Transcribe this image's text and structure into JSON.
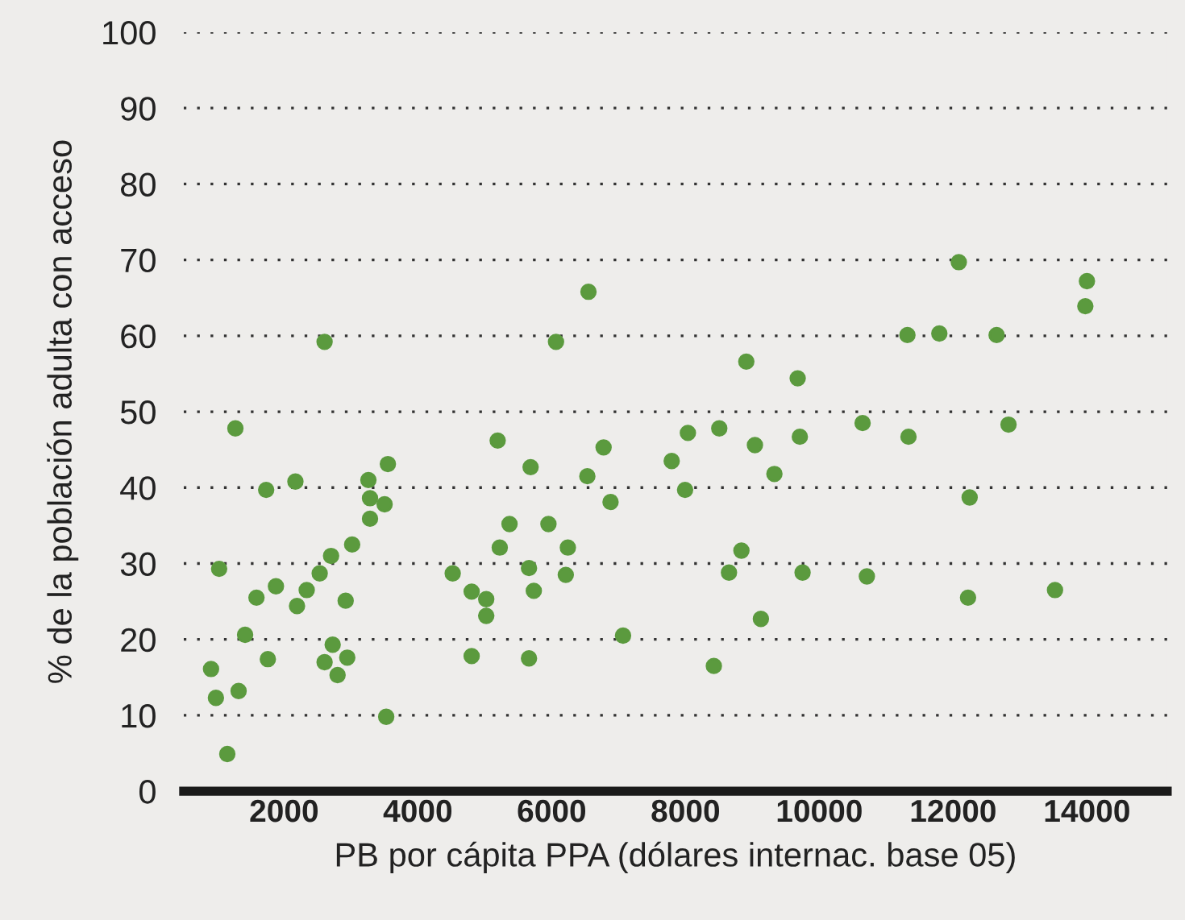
{
  "chart_data": {
    "type": "scatter",
    "xlabel": "PB por cápita PPA (dólares internac. base 05)",
    "ylabel": "% de la población adulta con acceso",
    "x": [
      909,
      982,
      1030,
      1152,
      1273,
      1321,
      1418,
      1588,
      1733,
      1758,
      1879,
      2170,
      2194,
      2339,
      2533,
      2606,
      2606,
      2703,
      2727,
      2800,
      2921,
      2945,
      3018,
      3261,
      3285,
      3285,
      3503,
      3552,
      3527,
      4521,
      4804,
      4804,
      5022,
      5022,
      5224,
      5370,
      5193,
      5661,
      5733,
      5661,
      5685,
      6065,
      5952,
      6242,
      6211,
      6550,
      6533,
      6776,
      6880,
      7067,
      7794,
      8036,
      7994,
      8424,
      8505,
      8836,
      8650,
      8909,
      9038,
      9127,
      9329,
      9677,
      9709,
      9750,
      10647,
      10711,
      11317,
      11333,
      11794,
      12085,
      12247,
      12223,
      14000,
      13976,
      12650,
      12828,
      13523
    ],
    "values": [
      16.1,
      12.3,
      29.3,
      4.9,
      47.8,
      13.2,
      20.6,
      25.5,
      39.7,
      17.4,
      27.0,
      40.8,
      24.4,
      26.5,
      28.7,
      17.0,
      59.2,
      31.0,
      19.3,
      15.3,
      25.1,
      17.6,
      32.5,
      41.0,
      38.6,
      35.9,
      37.8,
      43.1,
      9.8,
      28.7,
      26.3,
      17.8,
      25.3,
      23.1,
      32.1,
      35.2,
      46.2,
      29.4,
      26.4,
      17.5,
      42.7,
      59.2,
      35.2,
      32.1,
      28.5,
      65.8,
      41.5,
      45.3,
      38.1,
      20.5,
      43.5,
      47.2,
      39.7,
      16.5,
      47.8,
      31.7,
      28.8,
      56.6,
      45.6,
      22.7,
      41.8,
      54.4,
      46.7,
      28.8,
      48.5,
      28.3,
      60.1,
      46.7,
      60.3,
      69.7,
      38.7,
      25.5,
      67.2,
      63.9,
      60.1,
      48.3,
      26.5
    ],
    "color": "#5b9a3e",
    "marker": "circle",
    "xlim": [
      500,
      15200
    ],
    "xticks": [
      2000,
      4000,
      6000,
      8000,
      10000,
      12000,
      14000
    ],
    "ylim": [
      0,
      100
    ],
    "yticks": [
      0,
      10,
      20,
      30,
      40,
      50,
      60,
      70,
      80,
      90,
      100
    ],
    "grid": "y"
  }
}
